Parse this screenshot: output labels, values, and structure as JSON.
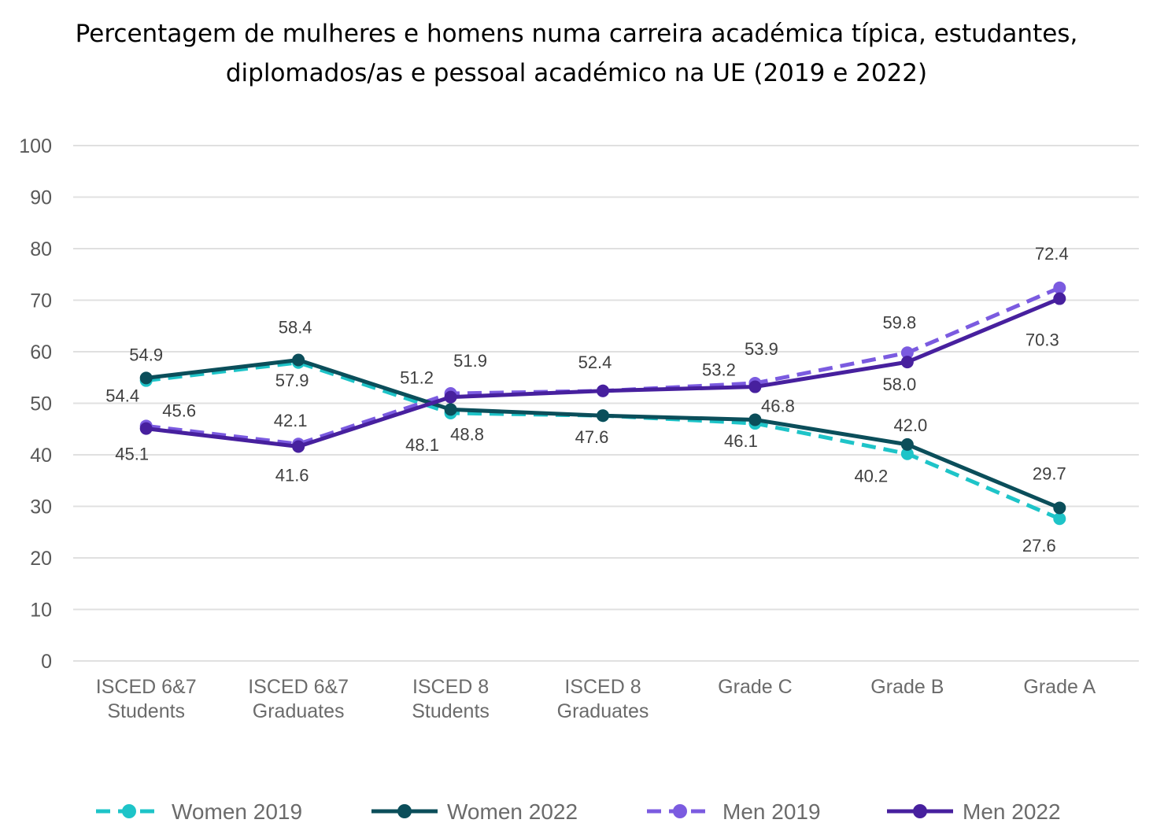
{
  "chart_data": {
    "type": "line",
    "title": "Percentagem de mulheres e homens numa carreira académica típica, estudantes, diplomados/as e pessoal académico na UE (2019 e 2022)",
    "categories": [
      [
        "ISCED 6&7",
        "Students"
      ],
      [
        "ISCED 6&7",
        "Graduates"
      ],
      [
        "ISCED 8",
        "Students"
      ],
      [
        "ISCED 8",
        "Graduates"
      ],
      [
        "Grade C"
      ],
      [
        "Grade B"
      ],
      [
        "Grade A"
      ]
    ],
    "ylim": [
      0,
      100
    ],
    "yticks": [
      0,
      10,
      20,
      30,
      40,
      50,
      60,
      70,
      80,
      90,
      100
    ],
    "grid": true,
    "legend": "bottom",
    "series": [
      {
        "name": "Women 2019",
        "values": [
          54.4,
          57.9,
          48.1,
          47.6,
          46.1,
          40.2,
          27.6
        ],
        "color": "#1ec4c8",
        "dashed": true
      },
      {
        "name": "Women 2022",
        "values": [
          54.9,
          58.4,
          48.8,
          47.6,
          46.8,
          42.0,
          29.7
        ],
        "color": "#0b4e5a",
        "dashed": false
      },
      {
        "name": "Men 2019",
        "values": [
          45.6,
          42.1,
          51.9,
          52.4,
          53.9,
          59.8,
          72.4
        ],
        "color": "#7b5be0",
        "dashed": true
      },
      {
        "name": "Men 2022",
        "values": [
          45.1,
          41.6,
          51.2,
          52.4,
          53.2,
          58.0,
          70.3
        ],
        "color": "#47209e",
        "dashed": false
      }
    ]
  }
}
